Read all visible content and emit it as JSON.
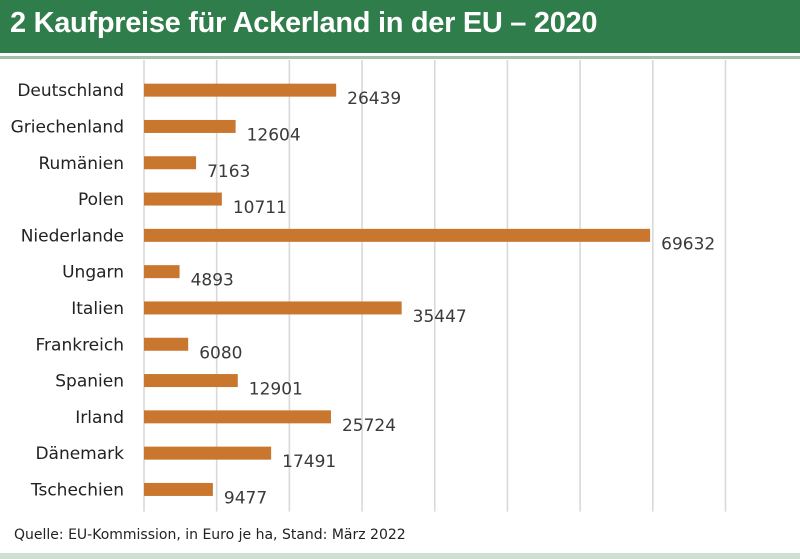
{
  "header": {
    "title": "2 Kaufpreise für Ackerland in der EU – 2020"
  },
  "footer": {
    "source": "Quelle: EU-Kommission, in Euro je ha, Stand: März 2022"
  },
  "colors": {
    "bar": "#c9772f",
    "header_bg": "#2f7d4a",
    "grid": "#d9d9d9"
  },
  "chart_data": {
    "type": "bar",
    "orientation": "horizontal",
    "title": "Kaufpreise für Ackerland in der EU – 2020",
    "xlabel": "",
    "ylabel": "",
    "unit": "Euro je ha",
    "grid": true,
    "xlim": [
      0,
      87500
    ],
    "categories": [
      "Deutschland",
      "Griechenland",
      "Rumänien",
      "Polen",
      "Niederlande",
      "Ungarn",
      "Italien",
      "Frankreich",
      "Spanien",
      "Irland",
      "Dänemark",
      "Tschechien"
    ],
    "values": [
      26439,
      12604,
      7163,
      10711,
      69632,
      4893,
      35447,
      6080,
      12901,
      25724,
      17491,
      9477
    ]
  }
}
